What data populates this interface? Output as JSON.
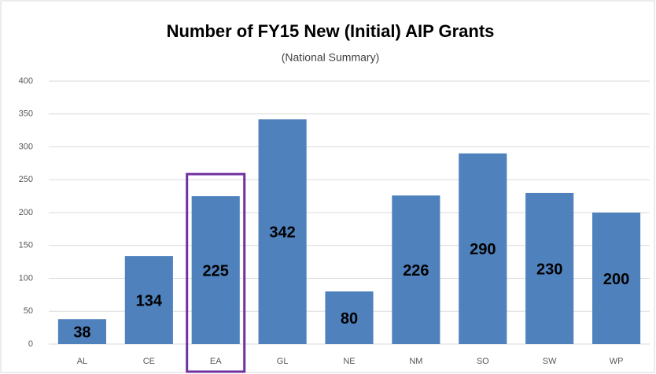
{
  "chart_data": {
    "type": "bar",
    "title": "Number of FY15 New (Initial) AIP Grants",
    "subtitle": "(National Summary)",
    "categories": [
      "AL",
      "CE",
      "EA",
      "GL",
      "NE",
      "NM",
      "SO",
      "SW",
      "WP"
    ],
    "values": [
      38,
      134,
      225,
      342,
      80,
      226,
      290,
      230,
      200
    ],
    "color": "#4f81bd",
    "ylim": [
      0,
      400
    ],
    "yticks": [
      0,
      50,
      100,
      150,
      200,
      250,
      300,
      350,
      400
    ],
    "grid": true
  }
}
